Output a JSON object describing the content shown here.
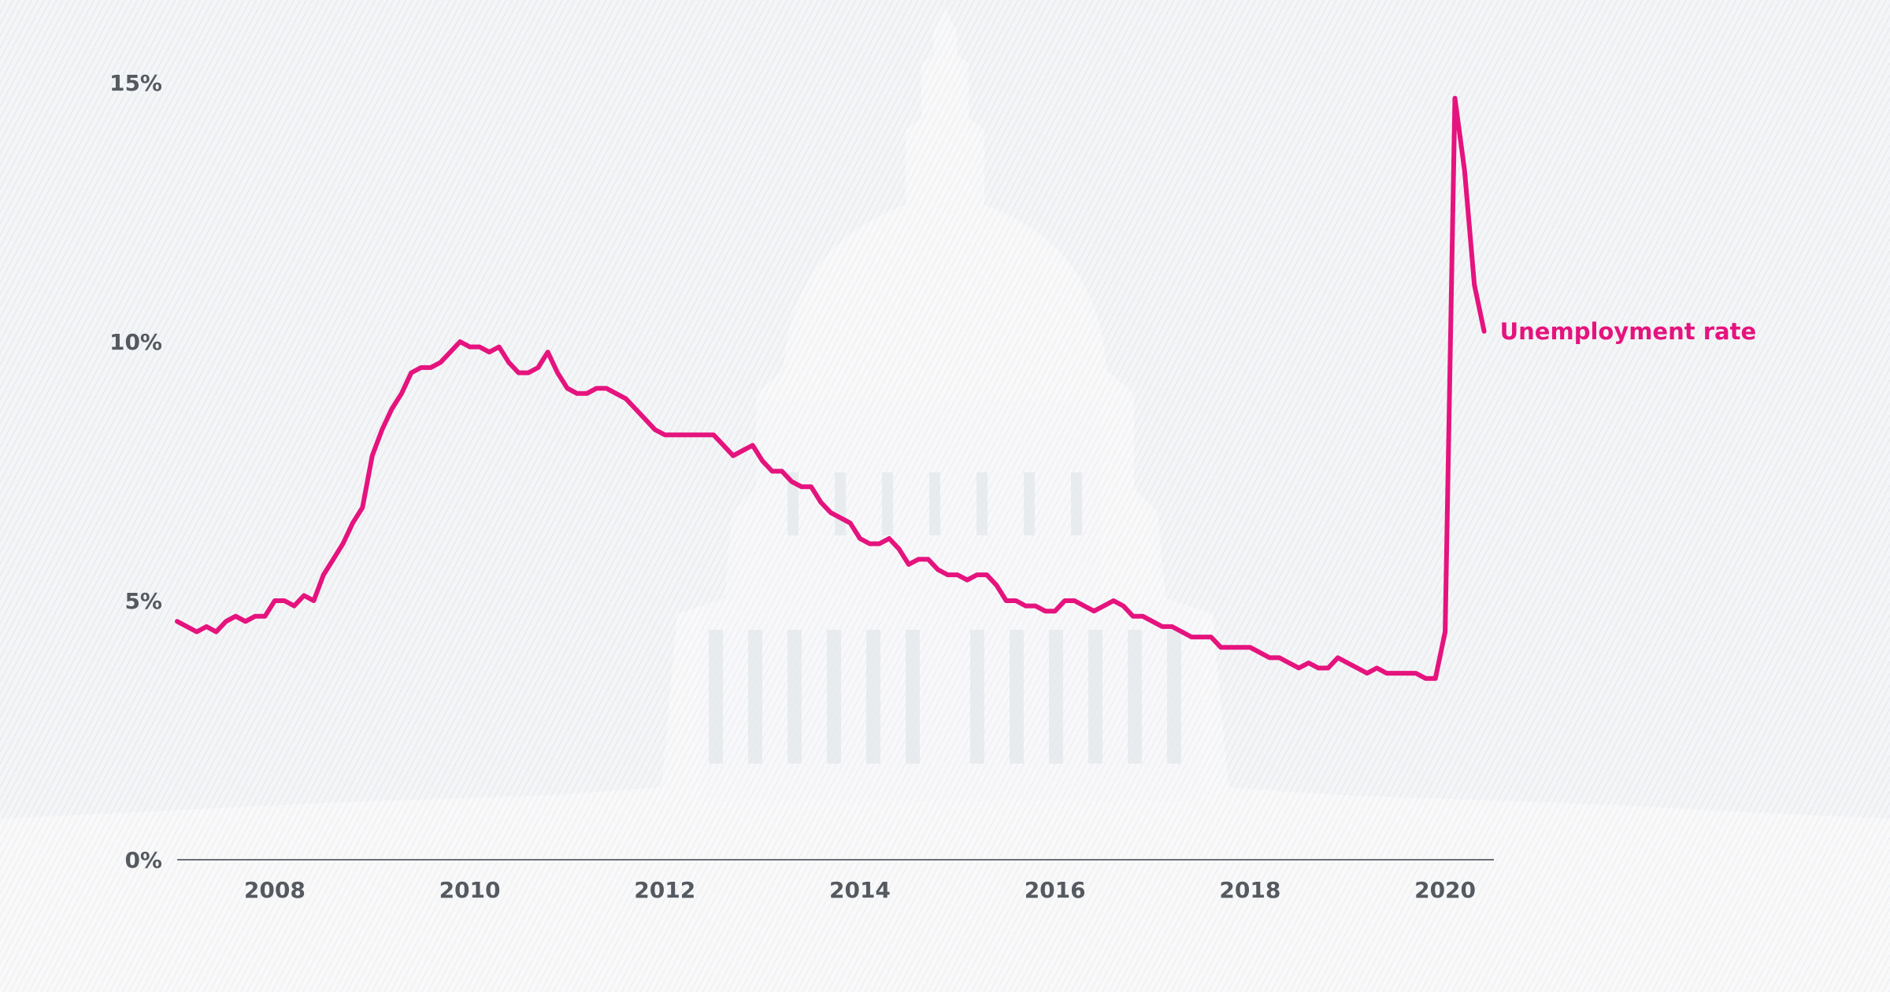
{
  "chart_data": {
    "type": "line",
    "title": "",
    "xlabel": "",
    "ylabel": "",
    "xlim": [
      2007.0,
      2020.5
    ],
    "ylim": [
      0,
      15
    ],
    "x_ticks": [
      2008,
      2010,
      2012,
      2014,
      2016,
      2018,
      2020
    ],
    "x_tick_labels": [
      "2008",
      "2010",
      "2012",
      "2014",
      "2016",
      "2018",
      "2020"
    ],
    "y_ticks": [
      0,
      5,
      10,
      15
    ],
    "y_tick_labels": [
      "0%",
      "5%",
      "10%",
      "15%"
    ],
    "grid": false,
    "series": [
      {
        "name": "Unemployment rate",
        "color": "#e5137d",
        "x": [
          2007.0,
          2007.1,
          2007.2,
          2007.3,
          2007.4,
          2007.5,
          2007.6,
          2007.7,
          2007.8,
          2007.9,
          2008.0,
          2008.1,
          2008.2,
          2008.3,
          2008.4,
          2008.5,
          2008.6,
          2008.7,
          2008.8,
          2008.9,
          2009.0,
          2009.1,
          2009.2,
          2009.3,
          2009.4,
          2009.5,
          2009.6,
          2009.7,
          2009.8,
          2009.9,
          2010.0,
          2010.1,
          2010.2,
          2010.3,
          2010.4,
          2010.5,
          2010.6,
          2010.7,
          2010.8,
          2010.9,
          2011.0,
          2011.1,
          2011.2,
          2011.3,
          2011.4,
          2011.5,
          2011.6,
          2011.7,
          2011.8,
          2011.9,
          2012.0,
          2012.1,
          2012.2,
          2012.3,
          2012.4,
          2012.5,
          2012.6,
          2012.7,
          2012.8,
          2012.9,
          2013.0,
          2013.1,
          2013.2,
          2013.3,
          2013.4,
          2013.5,
          2013.6,
          2013.7,
          2013.8,
          2013.9,
          2014.0,
          2014.1,
          2014.2,
          2014.3,
          2014.4,
          2014.5,
          2014.6,
          2014.7,
          2014.8,
          2014.9,
          2015.0,
          2015.1,
          2015.2,
          2015.3,
          2015.4,
          2015.5,
          2015.6,
          2015.7,
          2015.8,
          2015.9,
          2016.0,
          2016.1,
          2016.2,
          2016.3,
          2016.4,
          2016.5,
          2016.6,
          2016.7,
          2016.8,
          2016.9,
          2017.0,
          2017.1,
          2017.2,
          2017.3,
          2017.4,
          2017.5,
          2017.6,
          2017.7,
          2017.8,
          2017.9,
          2018.0,
          2018.1,
          2018.2,
          2018.3,
          2018.4,
          2018.5,
          2018.6,
          2018.7,
          2018.8,
          2018.9,
          2019.0,
          2019.1,
          2019.2,
          2019.3,
          2019.4,
          2019.5,
          2019.6,
          2019.7,
          2019.8,
          2019.9,
          2020.0,
          2020.1,
          2020.2,
          2020.3,
          2020.4
        ],
        "values": [
          4.6,
          4.5,
          4.4,
          4.5,
          4.4,
          4.6,
          4.7,
          4.6,
          4.7,
          4.7,
          5.0,
          5.0,
          4.9,
          5.1,
          5.0,
          5.5,
          5.8,
          6.1,
          6.5,
          6.8,
          7.8,
          8.3,
          8.7,
          9.0,
          9.4,
          9.5,
          9.5,
          9.6,
          9.8,
          10.0,
          9.9,
          9.9,
          9.8,
          9.9,
          9.6,
          9.4,
          9.4,
          9.5,
          9.8,
          9.4,
          9.1,
          9.0,
          9.0,
          9.1,
          9.1,
          9.0,
          8.9,
          8.7,
          8.5,
          8.3,
          8.2,
          8.2,
          8.2,
          8.2,
          8.2,
          8.2,
          8.0,
          7.8,
          7.9,
          8.0,
          7.7,
          7.5,
          7.5,
          7.3,
          7.2,
          7.2,
          6.9,
          6.7,
          6.6,
          6.5,
          6.2,
          6.1,
          6.1,
          6.2,
          6.0,
          5.7,
          5.8,
          5.8,
          5.6,
          5.5,
          5.5,
          5.4,
          5.5,
          5.5,
          5.3,
          5.0,
          5.0,
          4.9,
          4.9,
          4.8,
          4.8,
          5.0,
          5.0,
          4.9,
          4.8,
          4.9,
          5.0,
          4.9,
          4.7,
          4.7,
          4.6,
          4.5,
          4.5,
          4.4,
          4.3,
          4.3,
          4.3,
          4.1,
          4.1,
          4.1,
          4.1,
          4.0,
          3.9,
          3.9,
          3.8,
          3.7,
          3.8,
          3.7,
          3.7,
          3.9,
          3.8,
          3.7,
          3.6,
          3.7,
          3.6,
          3.6,
          3.6,
          3.6,
          3.5,
          3.5,
          4.4,
          14.7,
          13.3,
          11.1,
          10.2
        ]
      }
    ],
    "label_position": "end-of-line"
  }
}
